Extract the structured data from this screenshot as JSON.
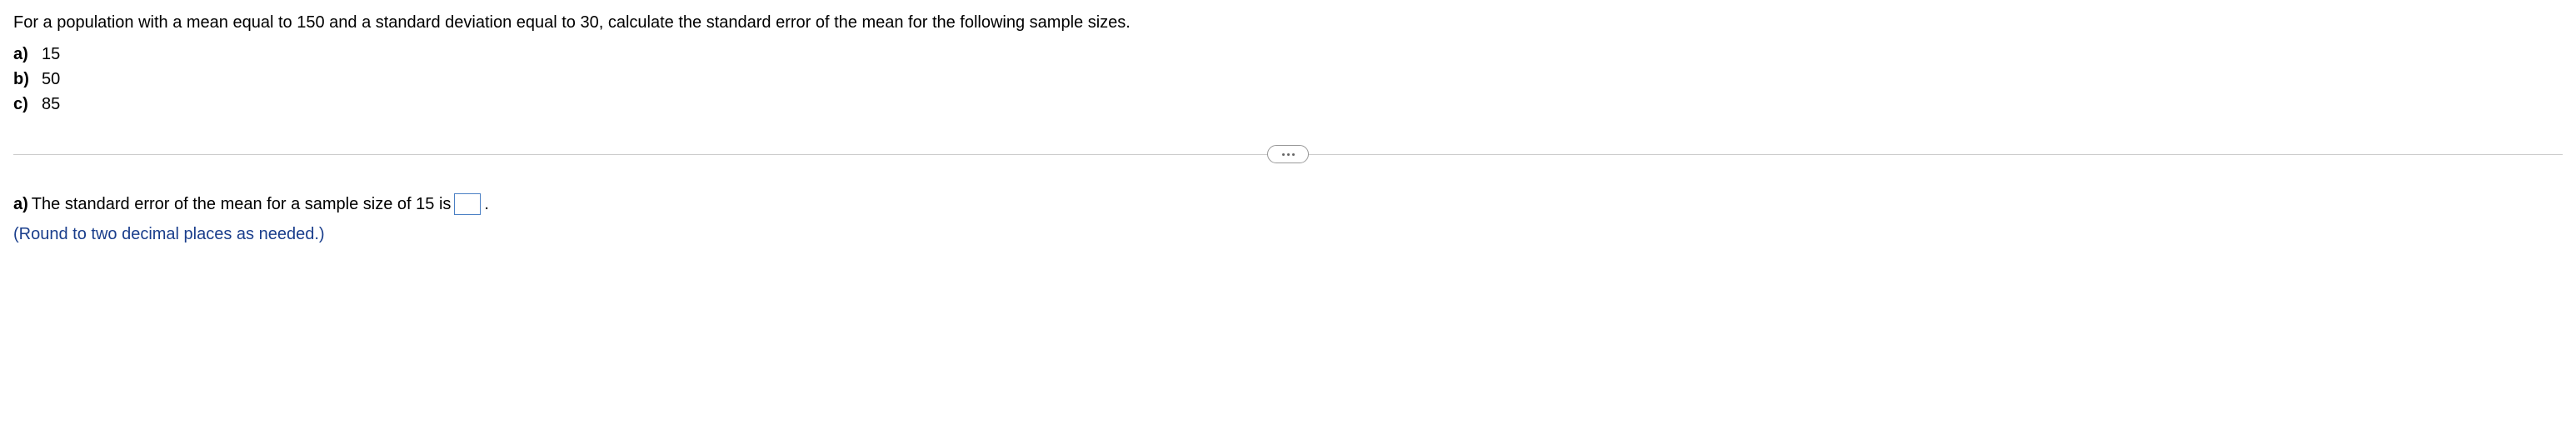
{
  "question": {
    "intro": "For a population with a mean equal to 150 and a standard deviation equal to 30, calculate the standard error of the mean for the following sample sizes.",
    "options": [
      {
        "label": "a)",
        "value": "15"
      },
      {
        "label": "b)",
        "value": "50"
      },
      {
        "label": "c)",
        "value": "85"
      }
    ]
  },
  "answer": {
    "prefix": "a)",
    "text_before": "The standard error of the mean for a sample size of 15 is",
    "text_after": ".",
    "input_value": "",
    "hint": "(Round to two decimal places as needed.)"
  },
  "colors": {
    "text": "#000000",
    "hint": "#1a3e8c",
    "divider": "#cccccc",
    "input_border": "#4a7fc4",
    "background": "#ffffff"
  }
}
